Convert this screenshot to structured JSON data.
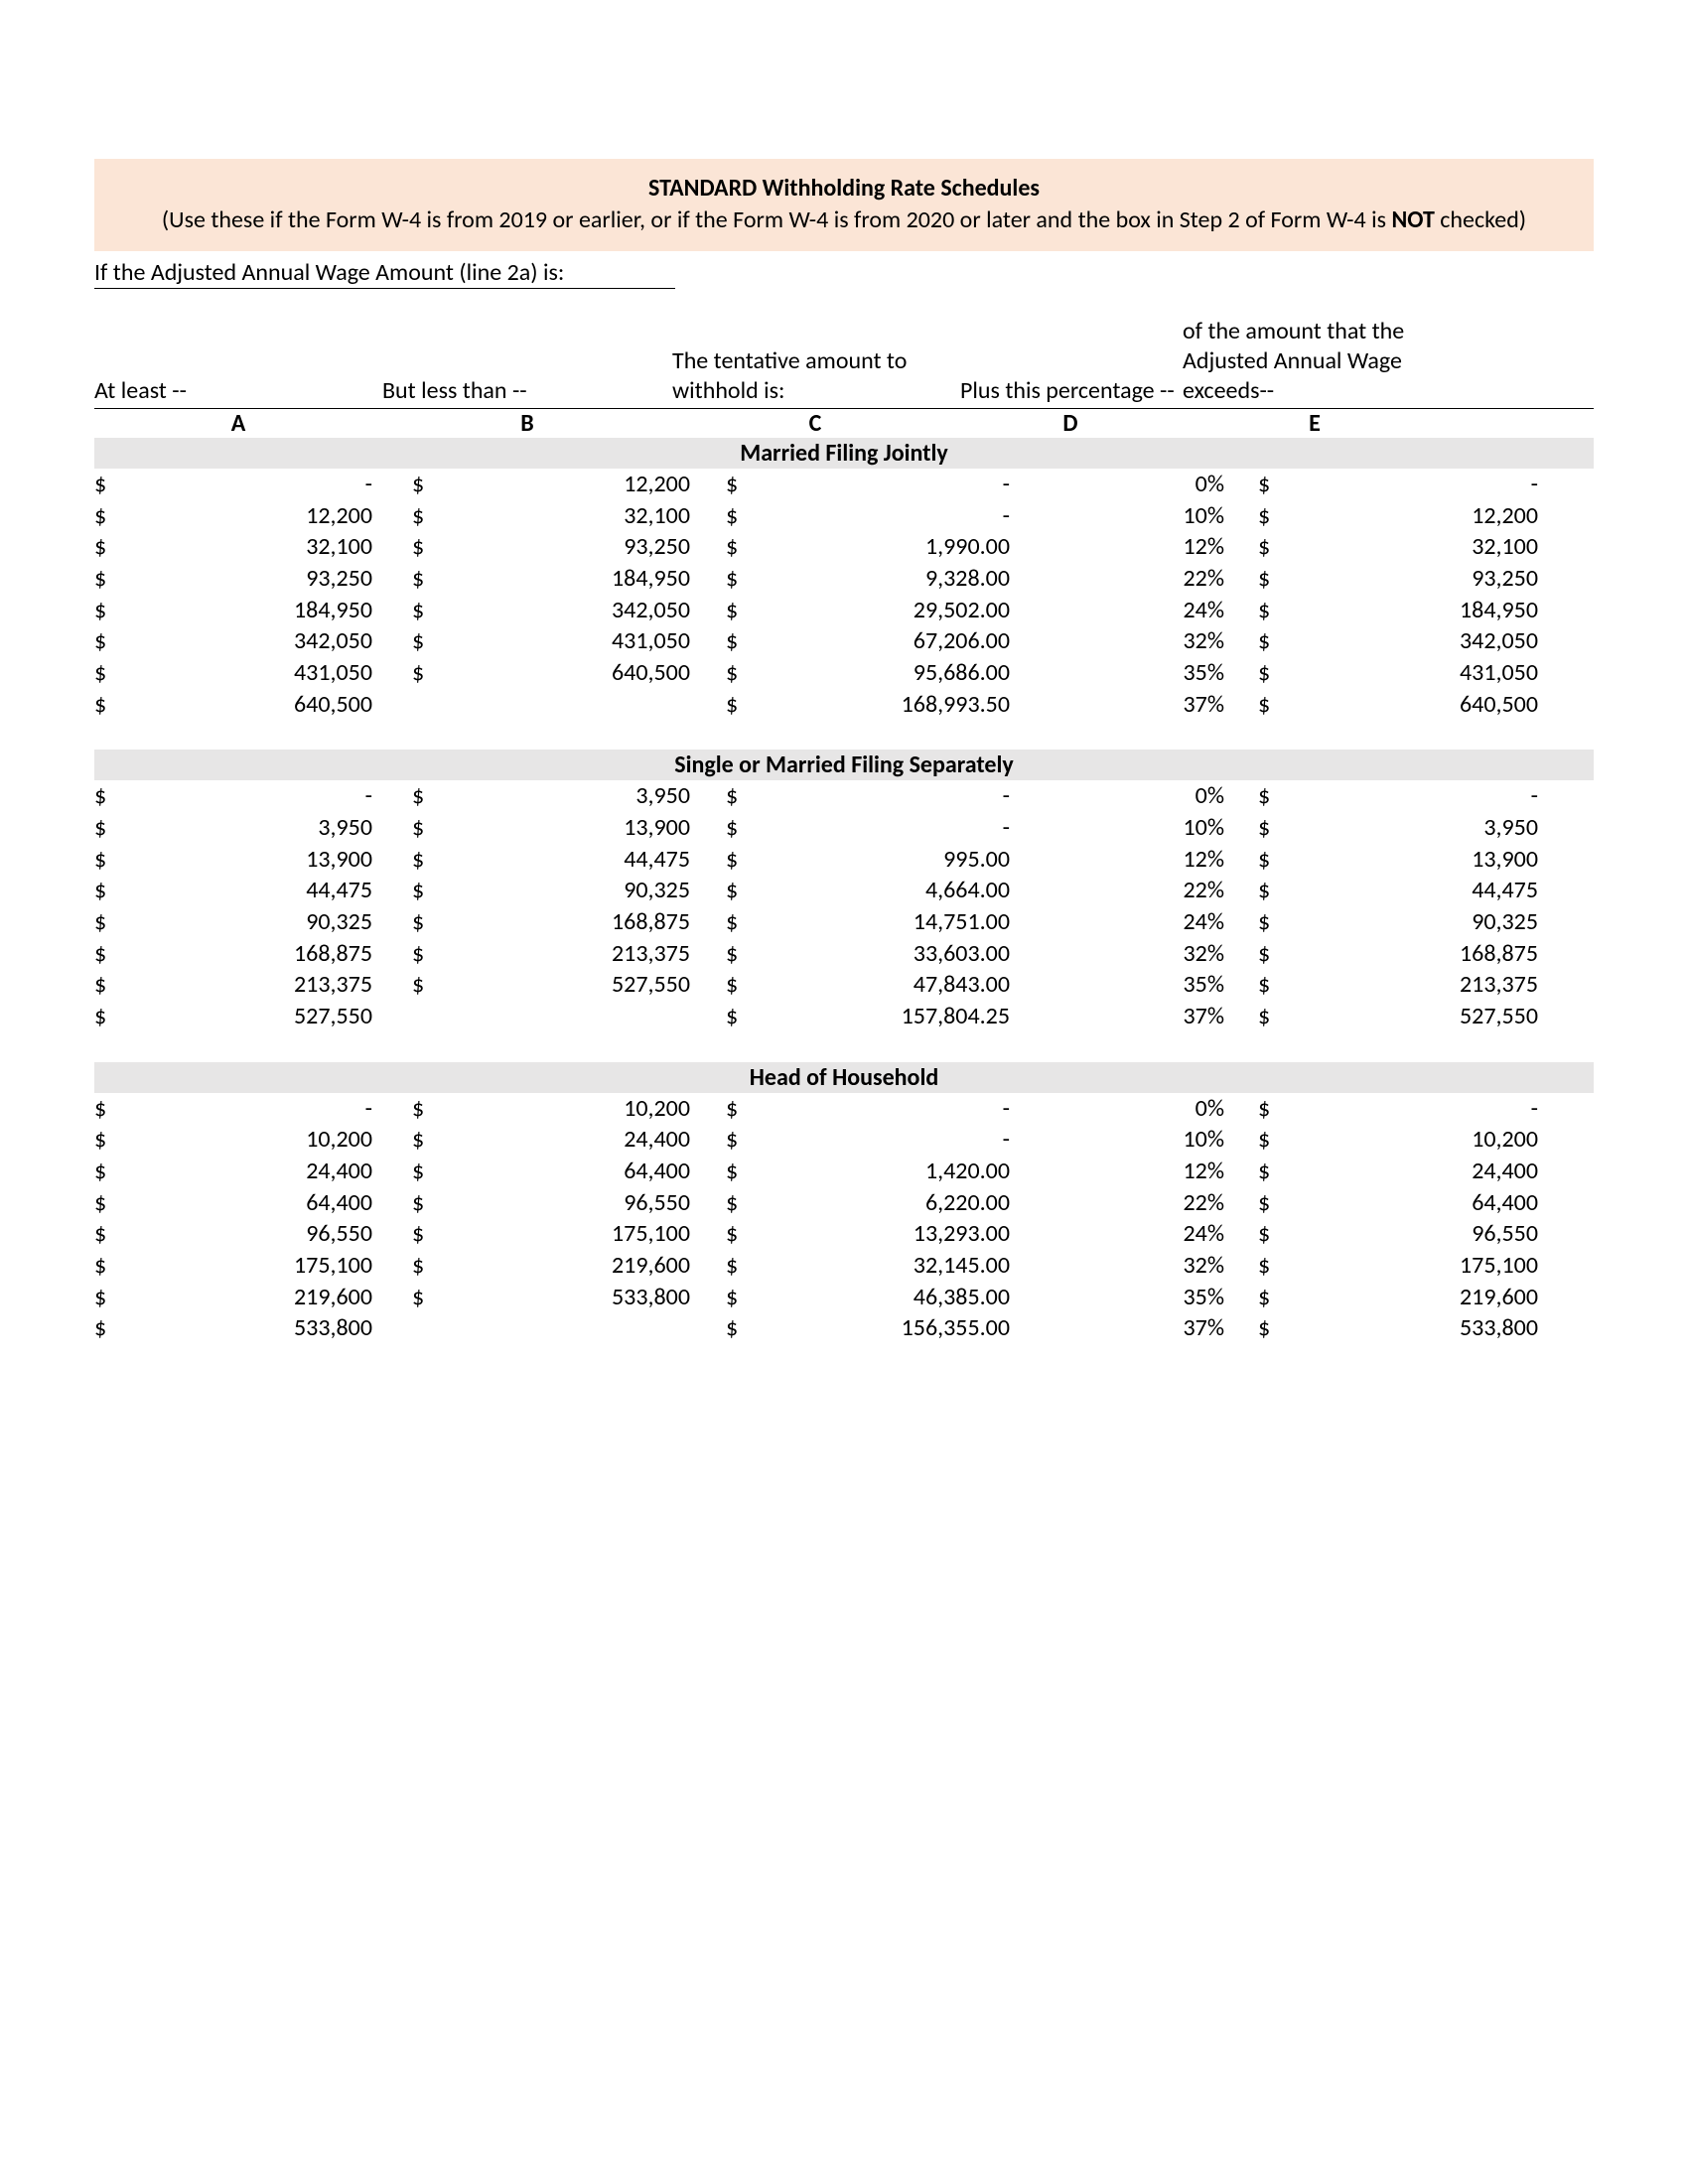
{
  "colors": {
    "title_bg": "#fbe5d6",
    "section_bg": "#e7e6e6",
    "text": "#000000",
    "rule": "#000000",
    "page_bg": "#ffffff"
  },
  "fonts": {
    "family": "Calibri",
    "size_pt": 18
  },
  "title": {
    "main": "STANDARD Withholding Rate Schedules",
    "sub_pre": "(Use these if the Form W-4 is from 2019 or earlier, or if the Form W-4 is from 2020 or later and the box in Step 2 of Form W-4 is ",
    "sub_bold": "NOT",
    "sub_post": " checked)"
  },
  "subheading": "If the Adjusted Annual Wage Amount (line 2a) is:",
  "headers": {
    "A": "At least --",
    "B": "But less than --",
    "C": "The tentative amount to withhold is:",
    "D": "Plus this percentage --",
    "E": "of the amount that the Adjusted Annual Wage exceeds--"
  },
  "letters": {
    "A": "A",
    "B": "B",
    "C": "C",
    "D": "D",
    "E": "E"
  },
  "currency": "$",
  "sections": [
    {
      "title": "Married Filing Jointly",
      "rows": [
        {
          "A": "-",
          "B": "12,200",
          "C": "-",
          "D": "0%",
          "E": "-"
        },
        {
          "A": "12,200",
          "B": "32,100",
          "C": "-",
          "D": "10%",
          "E": "12,200"
        },
        {
          "A": "32,100",
          "B": "93,250",
          "C": "1,990.00",
          "D": "12%",
          "E": "32,100"
        },
        {
          "A": "93,250",
          "B": "184,950",
          "C": "9,328.00",
          "D": "22%",
          "E": "93,250"
        },
        {
          "A": "184,950",
          "B": "342,050",
          "C": "29,502.00",
          "D": "24%",
          "E": "184,950"
        },
        {
          "A": "342,050",
          "B": "431,050",
          "C": "67,206.00",
          "D": "32%",
          "E": "342,050"
        },
        {
          "A": "431,050",
          "B": "640,500",
          "C": "95,686.00",
          "D": "35%",
          "E": "431,050"
        },
        {
          "A": "640,500",
          "B": "",
          "C": "168,993.50",
          "D": "37%",
          "E": "640,500"
        }
      ]
    },
    {
      "title": "Single or Married Filing Separately",
      "rows": [
        {
          "A": "-",
          "B": "3,950",
          "C": "-",
          "D": "0%",
          "E": "-"
        },
        {
          "A": "3,950",
          "B": "13,900",
          "C": "-",
          "D": "10%",
          "E": "3,950"
        },
        {
          "A": "13,900",
          "B": "44,475",
          "C": "995.00",
          "D": "12%",
          "E": "13,900"
        },
        {
          "A": "44,475",
          "B": "90,325",
          "C": "4,664.00",
          "D": "22%",
          "E": "44,475"
        },
        {
          "A": "90,325",
          "B": "168,875",
          "C": "14,751.00",
          "D": "24%",
          "E": "90,325"
        },
        {
          "A": "168,875",
          "B": "213,375",
          "C": "33,603.00",
          "D": "32%",
          "E": "168,875"
        },
        {
          "A": "213,375",
          "B": "527,550",
          "C": "47,843.00",
          "D": "35%",
          "E": "213,375"
        },
        {
          "A": "527,550",
          "B": "",
          "C": "157,804.25",
          "D": "37%",
          "E": "527,550"
        }
      ]
    },
    {
      "title": "Head of Household",
      "rows": [
        {
          "A": "-",
          "B": "10,200",
          "C": "-",
          "D": "0%",
          "E": "-"
        },
        {
          "A": "10,200",
          "B": "24,400",
          "C": "-",
          "D": "10%",
          "E": "10,200"
        },
        {
          "A": "24,400",
          "B": "64,400",
          "C": "1,420.00",
          "D": "12%",
          "E": "24,400"
        },
        {
          "A": "64,400",
          "B": "96,550",
          "C": "6,220.00",
          "D": "22%",
          "E": "64,400"
        },
        {
          "A": "96,550",
          "B": "175,100",
          "C": "13,293.00",
          "D": "24%",
          "E": "96,550"
        },
        {
          "A": "175,100",
          "B": "219,600",
          "C": "32,145.00",
          "D": "32%",
          "E": "175,100"
        },
        {
          "A": "219,600",
          "B": "533,800",
          "C": "46,385.00",
          "D": "35%",
          "E": "219,600"
        },
        {
          "A": "533,800",
          "B": "",
          "C": "156,355.00",
          "D": "37%",
          "E": "533,800"
        }
      ]
    }
  ]
}
